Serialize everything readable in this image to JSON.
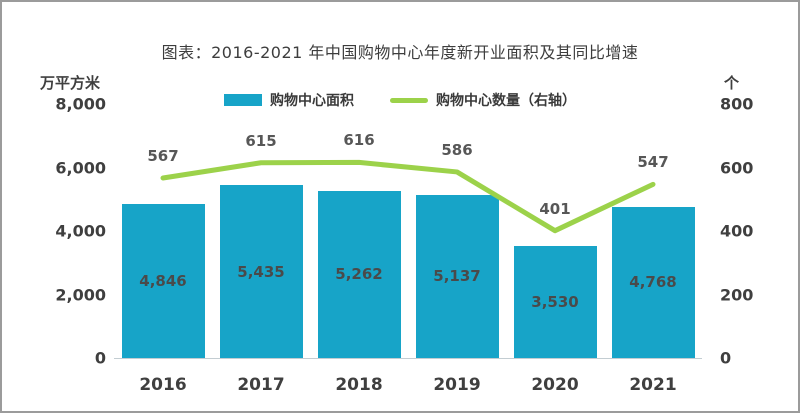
{
  "title": "图表：2016-2021 年中国购物中心年度新开业面积及其同比增速",
  "legend": [
    {
      "label": "购物中心面积",
      "type": "bar",
      "color": "#17a4c8"
    },
    {
      "label": "购物中心数量（右轴）",
      "type": "line",
      "color": "#9cd24a"
    }
  ],
  "chart_data": {
    "type": "bar+line combo",
    "title": "图表：2016-2021 年中国购物中心年度新开业面积及其同比增速",
    "categories": [
      "2016",
      "2017",
      "2018",
      "2019",
      "2020",
      "2021"
    ],
    "series": [
      {
        "name": "购物中心面积",
        "type": "bar",
        "axis": "left",
        "color": "#17a4c8",
        "values": [
          4846,
          5435,
          5262,
          5137,
          3530,
          4768
        ],
        "labels": [
          "4,846",
          "5,435",
          "5,262",
          "5,137",
          "3,530",
          "4,768"
        ]
      },
      {
        "name": "购物中心数量（右轴）",
        "type": "line",
        "axis": "right",
        "color": "#9cd24a",
        "values": [
          567,
          615,
          616,
          586,
          401,
          547
        ],
        "labels": [
          "567",
          "615",
          "616",
          "586",
          "401",
          "547"
        ]
      }
    ],
    "left_axis": {
      "unit": "万平方米",
      "min": 0,
      "max": 8000,
      "tick_values": [
        8000,
        6000,
        4000,
        2000,
        0
      ],
      "tick_labels": [
        "8,000",
        "6,000",
        "4,000",
        "2,000",
        "0"
      ]
    },
    "right_axis": {
      "unit": "个",
      "min": 0,
      "max": 800,
      "tick_values": [
        800,
        600,
        400,
        200,
        0
      ],
      "tick_labels": [
        "800",
        "600",
        "400",
        "200",
        "0"
      ]
    },
    "grid": false,
    "legend_position": "top"
  }
}
